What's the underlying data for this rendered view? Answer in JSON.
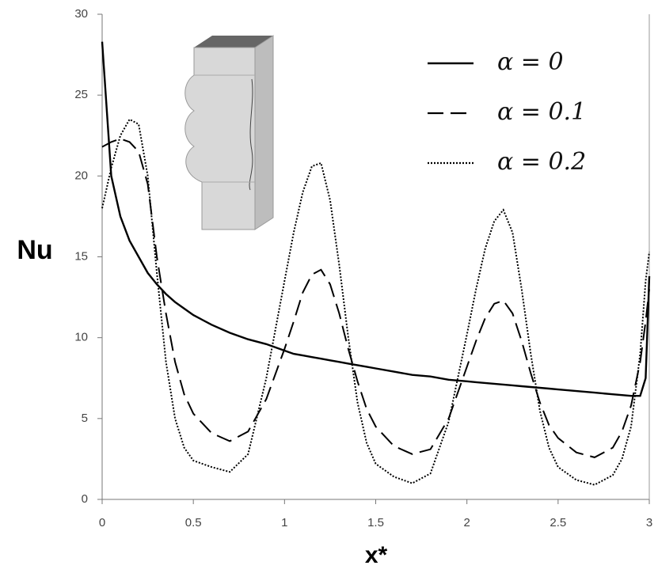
{
  "chart_data": {
    "type": "line",
    "x_label": "x*",
    "y_label": "Nu",
    "x": [
      0,
      0.05,
      0.1,
      0.15,
      0.2,
      0.25,
      0.3,
      0.35,
      0.4,
      0.45,
      0.5,
      0.6,
      0.7,
      0.8,
      0.9,
      1.0,
      1.05,
      1.1,
      1.15,
      1.2,
      1.25,
      1.3,
      1.35,
      1.4,
      1.45,
      1.5,
      1.6,
      1.7,
      1.8,
      1.9,
      2.0,
      2.05,
      2.1,
      2.15,
      2.2,
      2.25,
      2.3,
      2.35,
      2.4,
      2.45,
      2.5,
      2.6,
      2.7,
      2.8,
      2.85,
      2.9,
      2.95,
      2.98,
      3.0
    ],
    "series": [
      {
        "name": "α = 0",
        "color": "#000000",
        "dash": "solid",
        "values": [
          28.3,
          20,
          17.5,
          16,
          15,
          14,
          13.3,
          12.7,
          12.2,
          11.8,
          11.4,
          10.8,
          10.3,
          9.9,
          9.6,
          9.2,
          9.0,
          8.9,
          8.8,
          8.7,
          8.6,
          8.5,
          8.4,
          8.3,
          8.2,
          8.1,
          7.9,
          7.7,
          7.6,
          7.4,
          7.3,
          7.25,
          7.2,
          7.15,
          7.1,
          7.05,
          7.0,
          6.95,
          6.9,
          6.85,
          6.8,
          6.7,
          6.6,
          6.5,
          6.45,
          6.4,
          6.4,
          7.5,
          13.8
        ]
      },
      {
        "name": "α = 0.1",
        "color": "#000000",
        "dash": "dashed",
        "values": [
          21.8,
          22.1,
          22.3,
          22.1,
          21.5,
          19.5,
          15,
          11.5,
          8.5,
          6.5,
          5.3,
          4.1,
          3.6,
          4.2,
          6.2,
          9.3,
          11,
          12.8,
          13.9,
          14.2,
          13.3,
          11.5,
          9.3,
          7.3,
          5.6,
          4.5,
          3.3,
          2.8,
          3.1,
          5.0,
          8.2,
          9.8,
          11.2,
          12.1,
          12.3,
          11.5,
          9.8,
          7.8,
          6.0,
          4.6,
          3.8,
          2.9,
          2.6,
          3.2,
          4.2,
          5.8,
          8.5,
          11.0,
          13.0
        ]
      },
      {
        "name": "α = 0.2",
        "color": "#000000",
        "dash": "dotted",
        "values": [
          18,
          20.5,
          22.5,
          23.5,
          23.2,
          20,
          14,
          8.5,
          5,
          3.2,
          2.4,
          2.0,
          1.7,
          2.8,
          7.5,
          13.5,
          16.5,
          19,
          20.6,
          20.8,
          18.5,
          14.5,
          10,
          6,
          3.5,
          2.2,
          1.4,
          1.0,
          1.6,
          4.8,
          10.2,
          13,
          15.5,
          17.2,
          17.9,
          16.5,
          13,
          9,
          5.5,
          3.2,
          2.0,
          1.2,
          0.9,
          1.5,
          2.5,
          4.5,
          9,
          13.5,
          15.3
        ]
      }
    ],
    "xlim": [
      0,
      3
    ],
    "xticks": [
      0,
      0.5,
      1,
      1.5,
      2,
      2.5,
      3
    ],
    "ylim": [
      0,
      30
    ],
    "yticks": [
      0,
      5,
      10,
      15,
      20,
      25,
      30
    ],
    "grid": false,
    "legend": "upper right"
  }
}
